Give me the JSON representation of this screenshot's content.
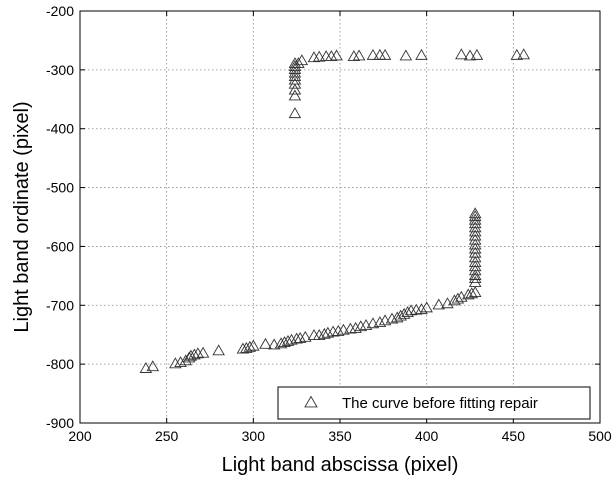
{
  "chart_data": {
    "type": "scatter",
    "title": "",
    "xlabel": "Light band abscissa (pixel)",
    "ylabel": "Light band ordinate (pixel)",
    "xlim": [
      200,
      500
    ],
    "ylim": [
      -900,
      -200
    ],
    "xticks": [
      200,
      250,
      300,
      350,
      400,
      450,
      500
    ],
    "yticks": [
      -900,
      -800,
      -700,
      -600,
      -500,
      -400,
      -300,
      -200
    ],
    "xtick_labels": [
      "200",
      "250",
      "300",
      "350",
      "400",
      "450",
      "500"
    ],
    "ytick_labels": [
      "-900",
      "-800",
      "-700",
      "-600",
      "-500",
      "-400",
      "-300",
      "-200"
    ],
    "grid": true,
    "legend_position": "bottom-right",
    "marker": "triangle-open",
    "series": [
      {
        "name": "The curve before fitting repair",
        "points": [
          [
            238,
            -808
          ],
          [
            242,
            -805
          ],
          [
            255,
            -800
          ],
          [
            258,
            -798
          ],
          [
            261,
            -795
          ],
          [
            263,
            -790
          ],
          [
            264,
            -787
          ],
          [
            266,
            -785
          ],
          [
            268,
            -783
          ],
          [
            271,
            -782
          ],
          [
            280,
            -778
          ],
          [
            294,
            -775
          ],
          [
            296,
            -774
          ],
          [
            298,
            -772
          ],
          [
            300,
            -770
          ],
          [
            307,
            -767
          ],
          [
            312,
            -768
          ],
          [
            316,
            -766
          ],
          [
            318,
            -764
          ],
          [
            320,
            -762
          ],
          [
            322,
            -760
          ],
          [
            325,
            -758
          ],
          [
            327,
            -757
          ],
          [
            330,
            -755
          ],
          [
            335,
            -752
          ],
          [
            338,
            -752
          ],
          [
            341,
            -750
          ],
          [
            343,
            -748
          ],
          [
            346,
            -746
          ],
          [
            349,
            -745
          ],
          [
            352,
            -743
          ],
          [
            356,
            -741
          ],
          [
            359,
            -740
          ],
          [
            362,
            -737
          ],
          [
            365,
            -735
          ],
          [
            369,
            -732
          ],
          [
            373,
            -730
          ],
          [
            376,
            -727
          ],
          [
            380,
            -724
          ],
          [
            383,
            -722
          ],
          [
            385,
            -719
          ],
          [
            387,
            -716
          ],
          [
            389,
            -713
          ],
          [
            391,
            -710
          ],
          [
            394,
            -709
          ],
          [
            397,
            -708
          ],
          [
            400,
            -705
          ],
          [
            407,
            -700
          ],
          [
            412,
            -698
          ],
          [
            416,
            -693
          ],
          [
            418,
            -690
          ],
          [
            420,
            -687
          ],
          [
            424,
            -683
          ],
          [
            426,
            -681
          ],
          [
            428,
            -679
          ],
          [
            428,
            -662
          ],
          [
            428,
            -655
          ],
          [
            428,
            -650
          ],
          [
            428,
            -642
          ],
          [
            428,
            -635
          ],
          [
            428,
            -628
          ],
          [
            428,
            -620
          ],
          [
            428,
            -612
          ],
          [
            428,
            -605
          ],
          [
            428,
            -598
          ],
          [
            428,
            -590
          ],
          [
            428,
            -583
          ],
          [
            428,
            -576
          ],
          [
            428,
            -569
          ],
          [
            428,
            -562
          ],
          [
            428,
            -556
          ],
          [
            428,
            -550
          ],
          [
            428,
            -545
          ],
          [
            324,
            -375
          ],
          [
            324,
            -345
          ],
          [
            324,
            -335
          ],
          [
            324,
            -325
          ],
          [
            324,
            -318
          ],
          [
            324,
            -312
          ],
          [
            324,
            -306
          ],
          [
            324,
            -300
          ],
          [
            324,
            -295
          ],
          [
            324,
            -290
          ],
          [
            326,
            -290
          ],
          [
            328,
            -285
          ],
          [
            335,
            -280
          ],
          [
            338,
            -279
          ],
          [
            342,
            -278
          ],
          [
            345,
            -278
          ],
          [
            348,
            -277
          ],
          [
            358,
            -278
          ],
          [
            361,
            -277
          ],
          [
            369,
            -276
          ],
          [
            373,
            -276
          ],
          [
            376,
            -276
          ],
          [
            388,
            -277
          ],
          [
            397,
            -276
          ],
          [
            420,
            -275
          ],
          [
            425,
            -277
          ],
          [
            429,
            -276
          ],
          [
            452,
            -276
          ],
          [
            456,
            -275
          ]
        ]
      }
    ]
  }
}
